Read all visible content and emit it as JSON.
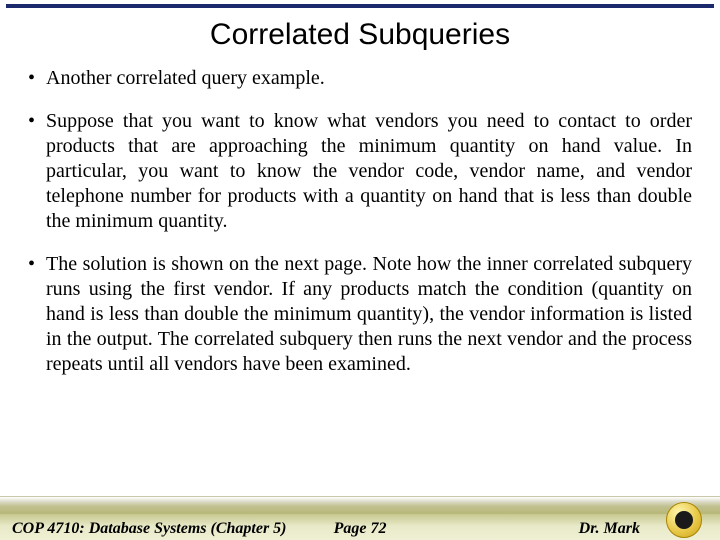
{
  "colors": {
    "top_rule": "#1a2a6c",
    "text": "#000000",
    "footer_grad_start": "#ffffff",
    "footer_grad_end": "#b8b878",
    "logo_gold": "#e9c94a",
    "logo_center": "#1a1a1a"
  },
  "title": "Correlated Subqueries",
  "bullets": [
    "Another correlated query example.",
    "Suppose that you want to know what vendors you need to contact to order products that are approaching the minimum quantity on hand value.  In particular, you want to know the vendor code, vendor name, and vendor telephone number for products with a quantity on hand that is less than double the minimum quantity.",
    "The solution is shown on the next page.  Note how the inner correlated subquery runs using the first vendor.  If any products match the condition (quantity on hand is less than double the minimum quantity), the vendor information is listed in the output.  The correlated subquery then runs the next vendor and the process repeats until all vendors have been examined."
  ],
  "footer": {
    "left": "COP 4710: Database Systems  (Chapter 5)",
    "center": "Page 72",
    "right": "Dr. Mark"
  }
}
